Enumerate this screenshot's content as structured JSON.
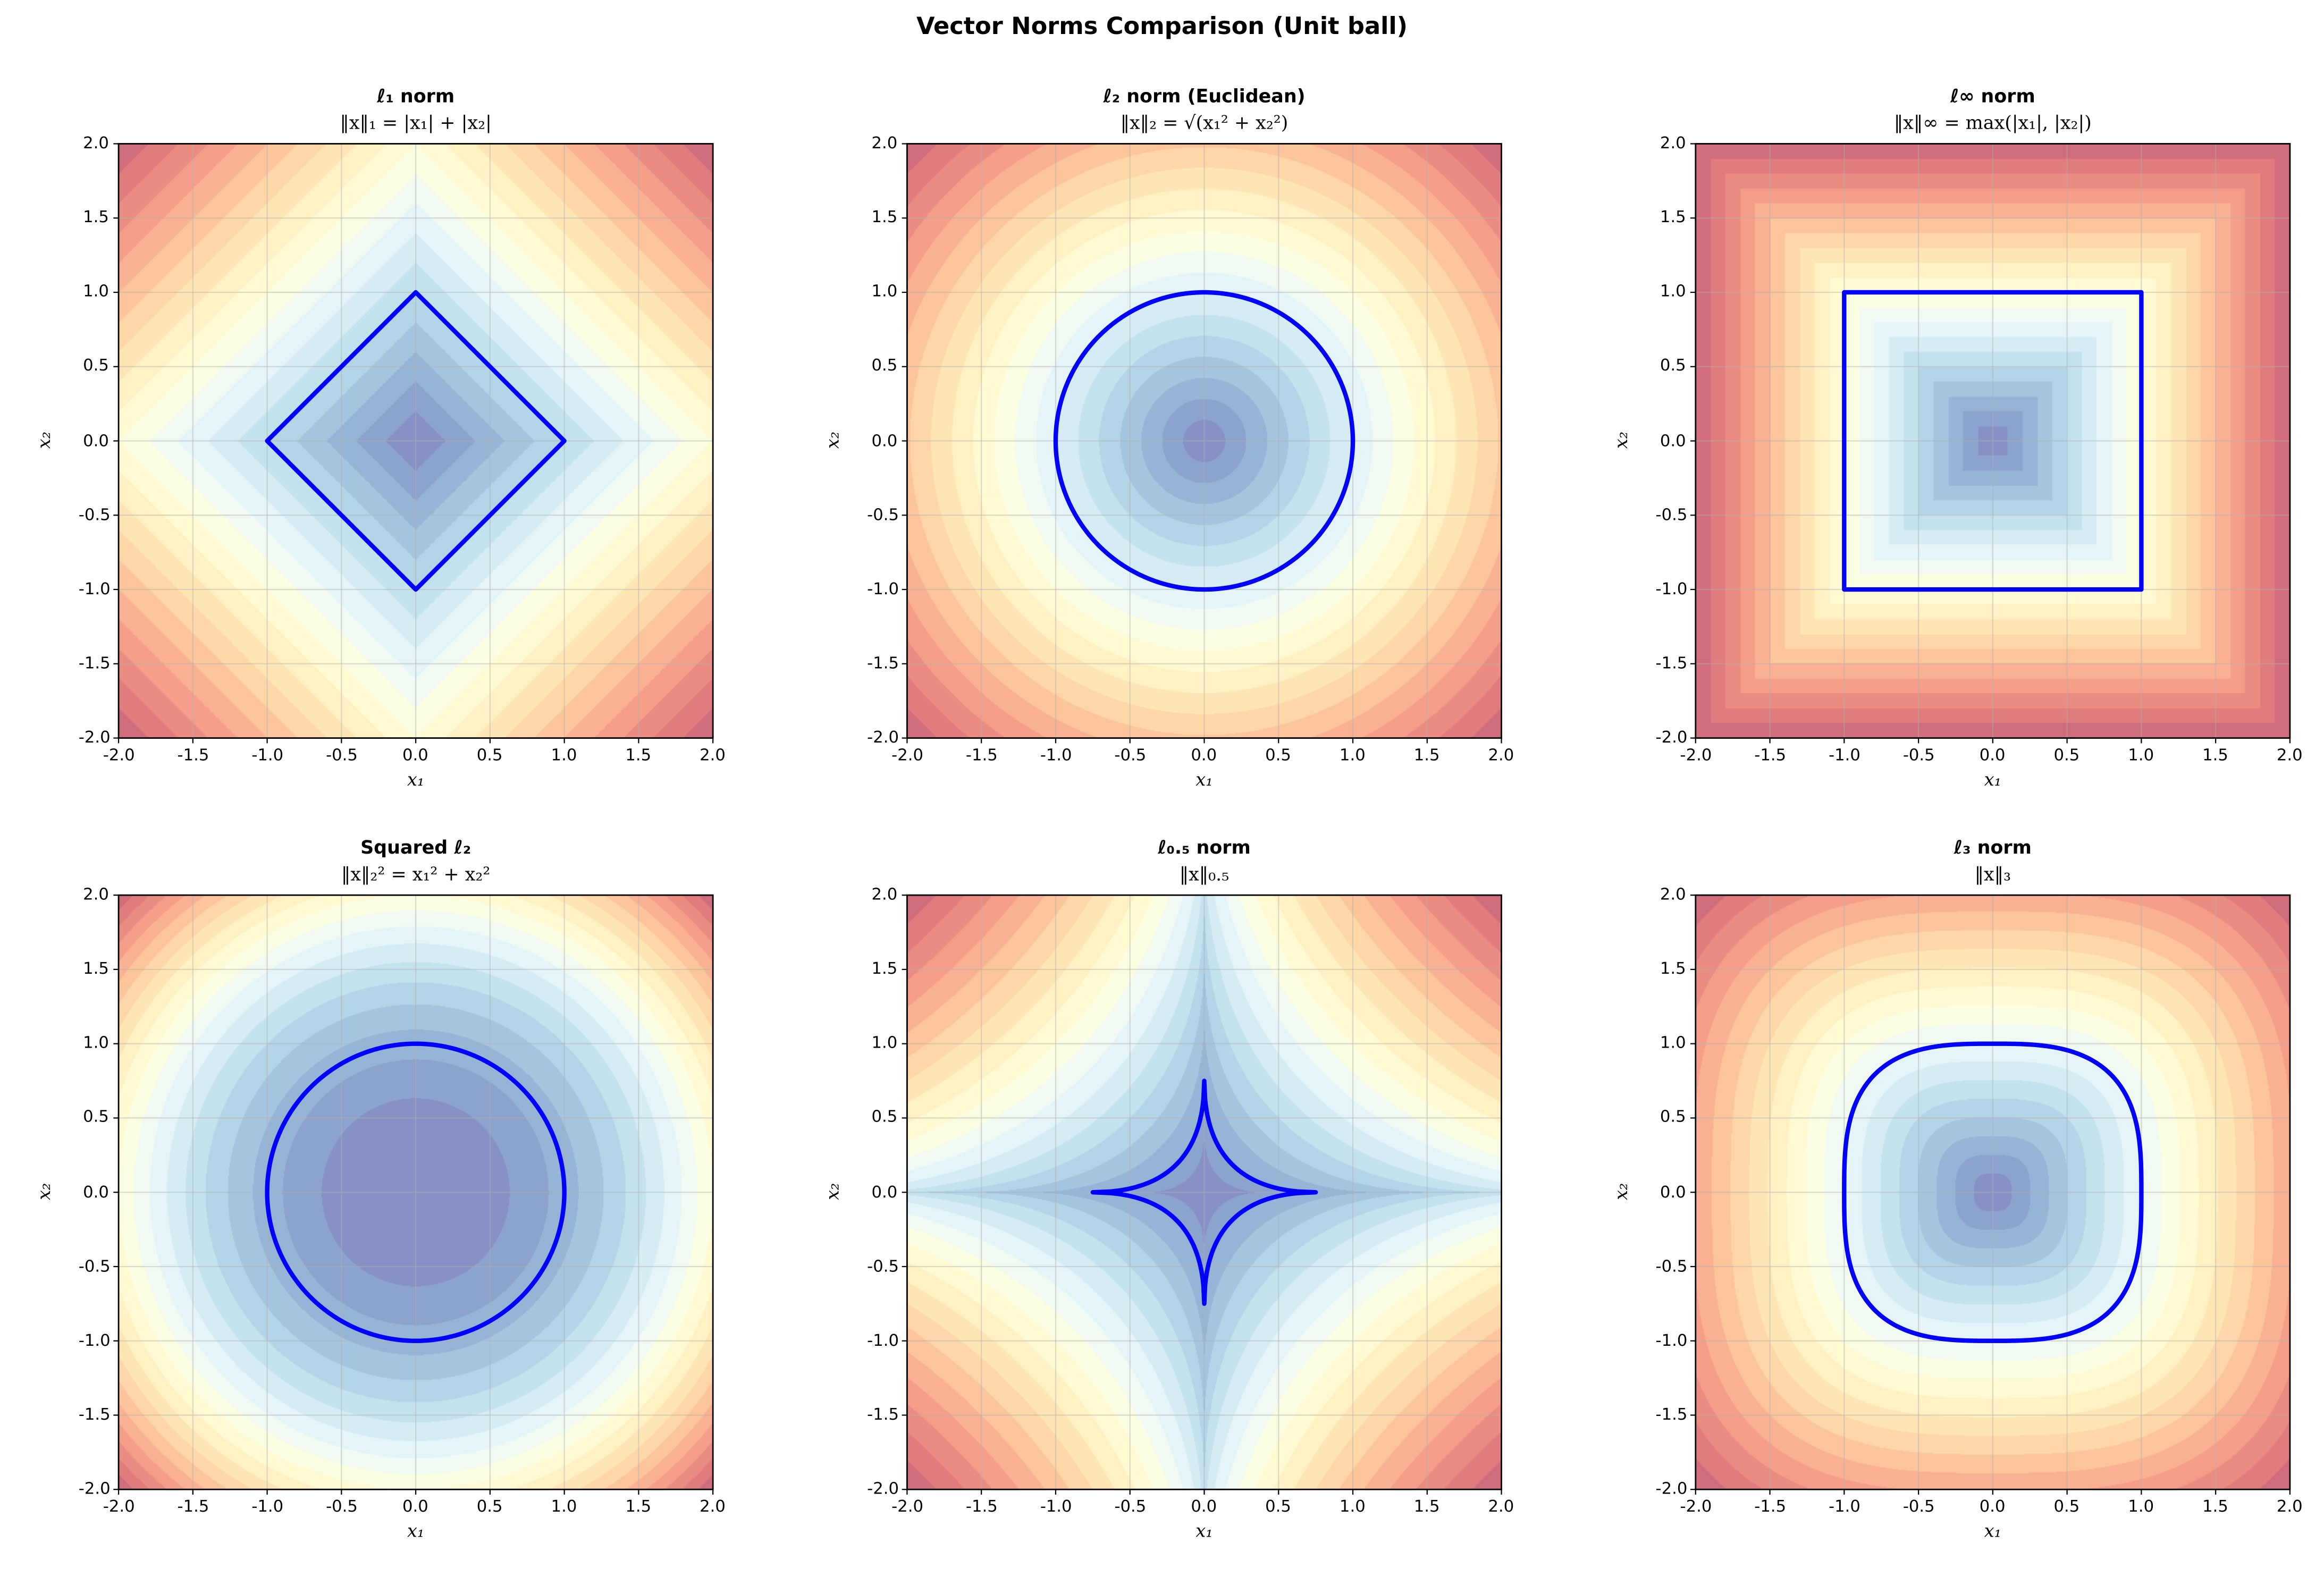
{
  "figure": {
    "suptitle": "Vector Norms Comparison (Unit ball)"
  },
  "chart_data": [
    {
      "type": "heatmap",
      "kind": "filled-contour",
      "title": "ℓ₁ norm",
      "subtitle": "‖x‖₁ = |x₁| + |x₂|",
      "norm": "l1",
      "p": 1,
      "levels": 20,
      "colormap": "RdYlBu_r",
      "unit_ball_color": "#0000ff",
      "unit_ball_extent": 1,
      "xlabel": "x₁",
      "ylabel": "x₂",
      "xlim": [
        -2,
        2
      ],
      "ylim": [
        -2,
        2
      ],
      "ticks": [
        "-2.0",
        "-1.5",
        "-1.0",
        "-0.5",
        "0.0",
        "0.5",
        "1.0",
        "1.5",
        "2.0"
      ],
      "grid": true
    },
    {
      "type": "heatmap",
      "kind": "filled-contour",
      "title": "ℓ₂ norm (Euclidean)",
      "subtitle": "‖x‖₂ = √(x₁² + x₂²)",
      "norm": "l2",
      "p": 2,
      "levels": 20,
      "colormap": "RdYlBu_r",
      "unit_ball_color": "#0000ff",
      "unit_ball_extent": 1,
      "xlabel": "x₁",
      "ylabel": "x₂",
      "xlim": [
        -2,
        2
      ],
      "ylim": [
        -2,
        2
      ],
      "ticks": [
        "-2.0",
        "-1.5",
        "-1.0",
        "-0.5",
        "0.0",
        "0.5",
        "1.0",
        "1.5",
        "2.0"
      ],
      "grid": true
    },
    {
      "type": "heatmap",
      "kind": "filled-contour",
      "title": "ℓ∞ norm",
      "subtitle": "‖x‖∞ = max(|x₁|, |x₂|)",
      "norm": "linf",
      "p": "inf",
      "levels": 20,
      "colormap": "RdYlBu_r",
      "unit_ball_color": "#0000ff",
      "unit_ball_extent": 1,
      "xlabel": "x₁",
      "ylabel": "x₂",
      "xlim": [
        -2,
        2
      ],
      "ylim": [
        -2,
        2
      ],
      "ticks": [
        "-2.0",
        "-1.5",
        "-1.0",
        "-0.5",
        "0.0",
        "0.5",
        "1.0",
        "1.5",
        "2.0"
      ],
      "grid": true
    },
    {
      "type": "heatmap",
      "kind": "filled-contour",
      "title": "Squared ℓ₂",
      "subtitle": "‖x‖₂² = x₁² + x₂²",
      "norm": "l2sq",
      "p": 2,
      "levels": 20,
      "colormap": "RdYlBu_r",
      "unit_ball_color": "#0000ff",
      "unit_ball_extent": 1,
      "xlabel": "x₁",
      "ylabel": "x₂",
      "xlim": [
        -2,
        2
      ],
      "ylim": [
        -2,
        2
      ],
      "ticks": [
        "-2.0",
        "-1.5",
        "-1.0",
        "-0.5",
        "0.0",
        "0.5",
        "1.0",
        "1.5",
        "2.0"
      ],
      "grid": true
    },
    {
      "type": "heatmap",
      "kind": "filled-contour",
      "title": "ℓ₀.₅ norm",
      "subtitle": "‖x‖₀.₅",
      "norm": "l05",
      "p": 0.5,
      "levels": 20,
      "colormap": "RdYlBu_r",
      "unit_ball_color": "#0000ff",
      "unit_ball_extent": 0.75,
      "xlabel": "x₁",
      "ylabel": "x₂",
      "xlim": [
        -2,
        2
      ],
      "ylim": [
        -2,
        2
      ],
      "ticks": [
        "-2.0",
        "-1.5",
        "-1.0",
        "-0.5",
        "0.0",
        "0.5",
        "1.0",
        "1.5",
        "2.0"
      ],
      "grid": true
    },
    {
      "type": "heatmap",
      "kind": "filled-contour",
      "title": "ℓ₃ norm",
      "subtitle": "‖x‖₃",
      "norm": "l3",
      "p": 3,
      "levels": 20,
      "colormap": "RdYlBu_r",
      "unit_ball_color": "#0000ff",
      "unit_ball_extent": 1,
      "xlabel": "x₁",
      "ylabel": "x₂",
      "xlim": [
        -2,
        2
      ],
      "ylim": [
        -2,
        2
      ],
      "ticks": [
        "-2.0",
        "-1.5",
        "-1.0",
        "-0.5",
        "0.0",
        "0.5",
        "1.0",
        "1.5",
        "2.0"
      ],
      "grid": true
    }
  ]
}
